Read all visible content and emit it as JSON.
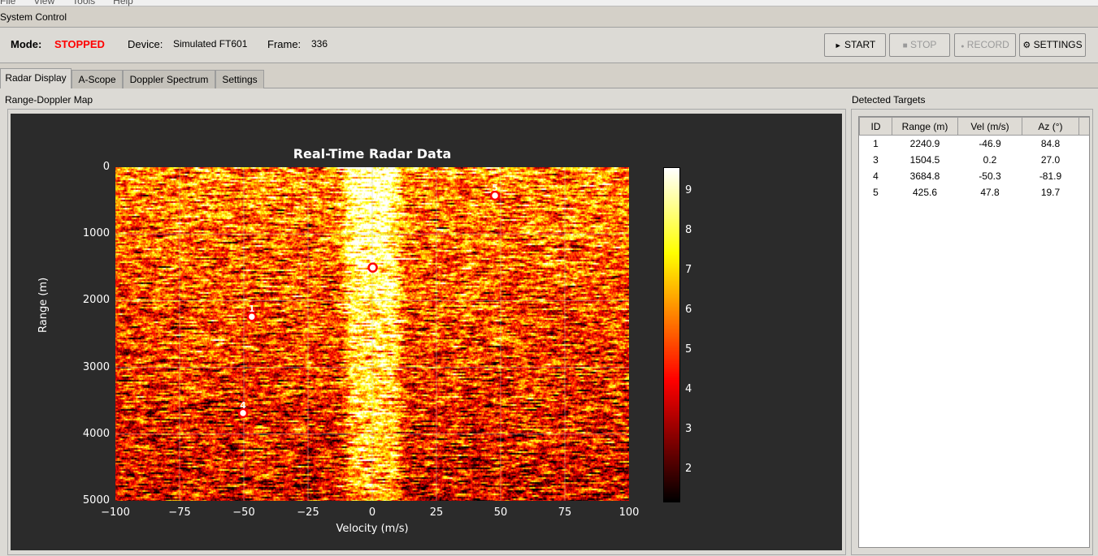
{
  "menu": [
    "File",
    "View",
    "Tools",
    "Help"
  ],
  "system_control": {
    "title": "System Control",
    "mode_label": "Mode:",
    "mode_value": "STOPPED",
    "mode_color": "#ff0000",
    "device_label": "Device:",
    "device_value": "Simulated FT601",
    "frame_label": "Frame:",
    "frame_value": "336"
  },
  "buttons": [
    {
      "icon": "play-icon",
      "glyph": "►",
      "label": "START",
      "enabled": true
    },
    {
      "icon": "stop-icon",
      "glyph": "■",
      "label": "STOP",
      "enabled": false
    },
    {
      "icon": "record-icon",
      "glyph": "●",
      "label": "RECORD",
      "enabled": false
    },
    {
      "icon": "gear-icon",
      "glyph": "⚙",
      "label": "SETTINGS",
      "enabled": true
    }
  ],
  "tabs": [
    {
      "label": "Radar Display",
      "active": true
    },
    {
      "label": "A-Scope",
      "active": false
    },
    {
      "label": "Doppler Spectrum",
      "active": false
    },
    {
      "label": "Settings",
      "active": false
    }
  ],
  "map_panel": {
    "title": "Range-Doppler Map"
  },
  "chart_data": {
    "type": "heatmap",
    "title": "Real-Time Radar Data",
    "xlabel": "Velocity (m/s)",
    "ylabel": "Range (m)",
    "xlim": [
      -100,
      100
    ],
    "ylim": [
      5000,
      0
    ],
    "xticks": [
      "−100",
      "−75",
      "−50",
      "−25",
      "0",
      "25",
      "50",
      "75",
      "100"
    ],
    "yticks": [
      "0",
      "1000",
      "2000",
      "3000",
      "4000",
      "5000"
    ],
    "colormap": "hot",
    "colorbar": {
      "range": [
        1.2,
        9.6
      ],
      "ticks": [
        "2",
        "3",
        "4",
        "5",
        "6",
        "7",
        "8",
        "9"
      ]
    },
    "grid": true,
    "markers": [
      {
        "id": "1",
        "velocity": -46.9,
        "range": 2240.9
      },
      {
        "id": "3",
        "velocity": 0.2,
        "range": 1504.5
      },
      {
        "id": "4",
        "velocity": -50.3,
        "range": 3684.8
      },
      {
        "id": "5",
        "velocity": 47.8,
        "range": 425.6
      }
    ]
  },
  "targets": {
    "title": "Detected Targets",
    "columns": [
      "ID",
      "Range (m)",
      "Vel (m/s)",
      "Az (°)"
    ],
    "rows": [
      [
        "1",
        "2240.9",
        "-46.9",
        "84.8"
      ],
      [
        "3",
        "1504.5",
        "0.2",
        "27.0"
      ],
      [
        "4",
        "3684.8",
        "-50.3",
        "-81.9"
      ],
      [
        "5",
        "425.6",
        "47.8",
        "19.7"
      ]
    ]
  }
}
